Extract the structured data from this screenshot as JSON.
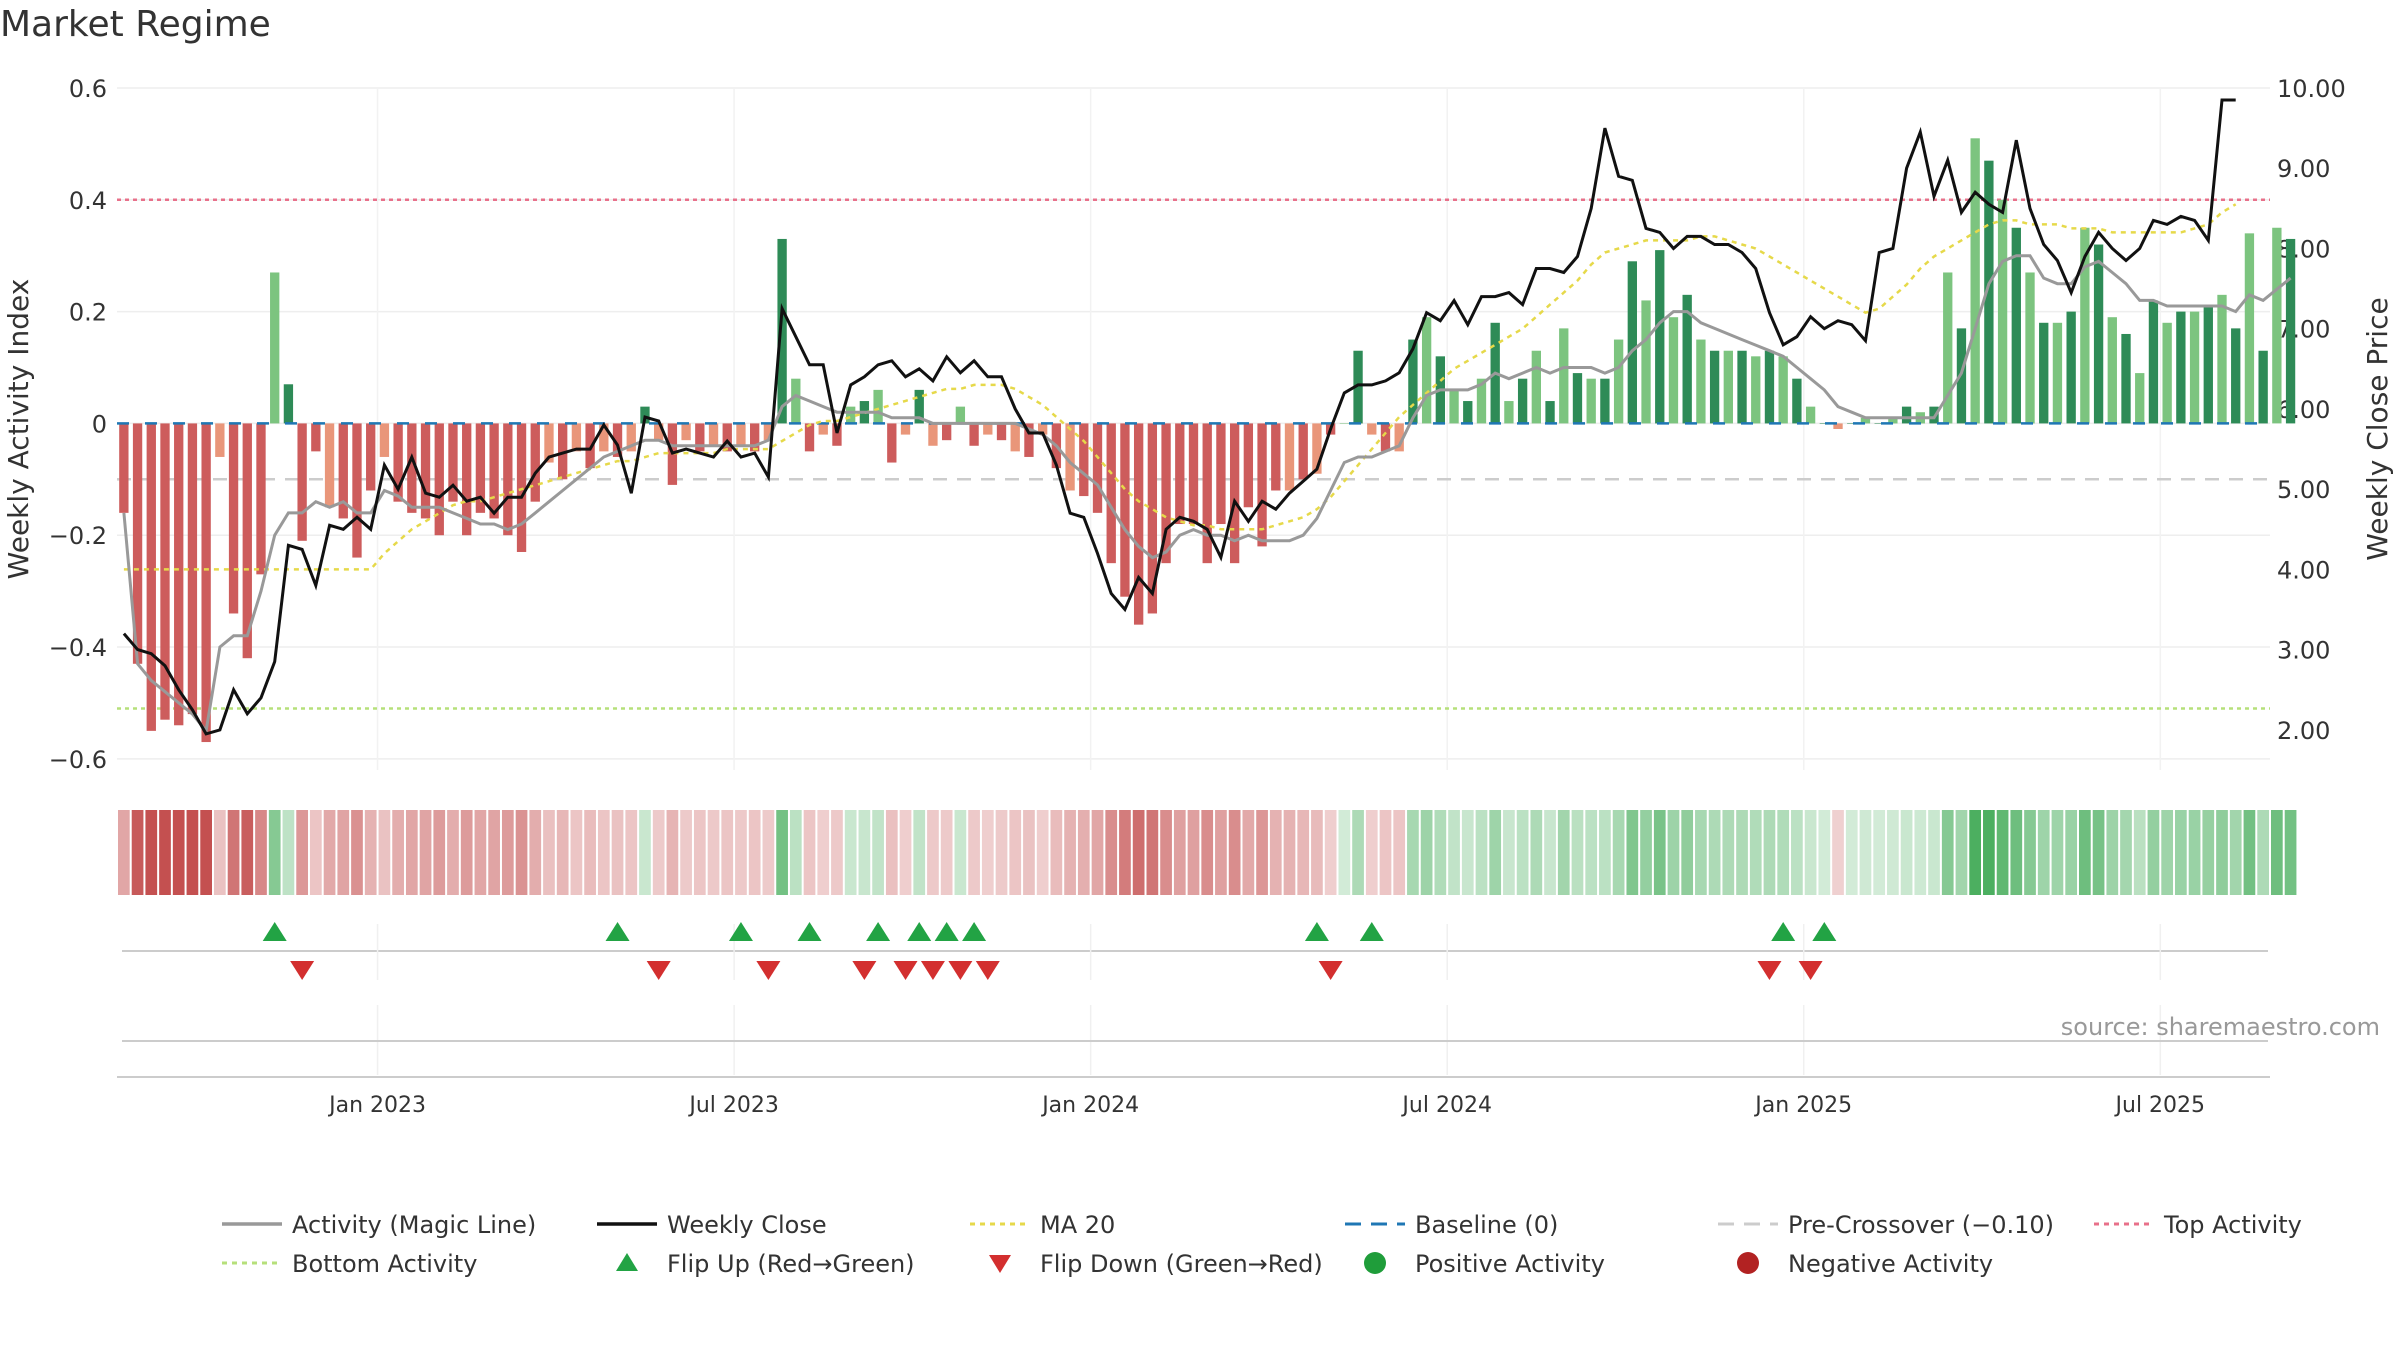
{
  "chart_data": {
    "type": "bar",
    "title": "Market Regime",
    "source": "source: sharemaestro.com",
    "ylabel_left": "Weekly Activity Index",
    "ylabel_right": "Weekly Close Price",
    "xlabel": "",
    "ylim_left": [
      -0.62,
      0.6
    ],
    "ylim_right": [
      1.5,
      10.0
    ],
    "yticks_left": [
      "0.6",
      "0.4",
      "0.2",
      "0",
      "−0.2",
      "−0.4",
      "−0.6"
    ],
    "yticks_left_values": [
      0.6,
      0.4,
      0.2,
      0,
      -0.2,
      -0.4,
      -0.6
    ],
    "yticks_right": [
      "10.00",
      "9.00",
      "8.00",
      "7.00",
      "6.00",
      "5.00",
      "4.00",
      "3.00",
      "2.00"
    ],
    "yticks_right_values": [
      10,
      9,
      8,
      7,
      6,
      5,
      4,
      3,
      2
    ],
    "x_ticks": [
      {
        "label": "Jan 2023",
        "week": 19
      },
      {
        "label": "Jul 2023",
        "week": 45
      },
      {
        "label": "Jan 2024",
        "week": 71
      },
      {
        "label": "Jul 2024",
        "week": 97
      },
      {
        "label": "Jan 2025",
        "week": 123
      },
      {
        "label": "Jul 2025",
        "week": 149
      }
    ],
    "x_range_weeks": [
      0,
      157
    ],
    "reference_lines": {
      "top_activity": 0.4,
      "bottom_activity": -0.51,
      "pre_crossover": -0.1,
      "baseline": 0
    },
    "series": [
      {
        "name": "Weekly Activity Index",
        "type": "bar",
        "values": [
          -0.16,
          -0.43,
          -0.55,
          -0.53,
          -0.54,
          -0.52,
          -0.57,
          -0.06,
          -0.34,
          -0.42,
          -0.27,
          0.27,
          0.07,
          -0.21,
          -0.05,
          -0.15,
          -0.17,
          -0.24,
          -0.12,
          -0.06,
          -0.14,
          -0.16,
          -0.17,
          -0.2,
          -0.14,
          -0.2,
          -0.16,
          -0.17,
          -0.2,
          -0.23,
          -0.14,
          -0.07,
          -0.1,
          -0.05,
          -0.08,
          -0.05,
          -0.06,
          -0.05,
          0.03,
          -0.03,
          -0.11,
          -0.03,
          -0.05,
          -0.04,
          -0.05,
          -0.04,
          -0.05,
          -0.03,
          0.33,
          0.08,
          -0.05,
          -0.02,
          -0.04,
          0.03,
          0.04,
          0.06,
          -0.07,
          -0.02,
          0.06,
          -0.04,
          -0.03,
          0.03,
          -0.04,
          -0.02,
          -0.03,
          -0.05,
          -0.06,
          -0.02,
          -0.08,
          -0.12,
          -0.13,
          -0.16,
          -0.25,
          -0.31,
          -0.36,
          -0.34,
          -0.25,
          -0.18,
          -0.18,
          -0.25,
          -0.18,
          -0.25,
          -0.15,
          -0.22,
          -0.12,
          -0.12,
          -0.1,
          -0.09,
          -0.02,
          0.0,
          0.13,
          -0.02,
          -0.05,
          -0.05,
          0.15,
          0.19,
          0.12,
          0.06,
          0.04,
          0.08,
          0.18,
          0.04,
          0.08,
          0.13,
          0.04,
          0.17,
          0.09,
          0.08,
          0.08,
          0.15,
          0.29,
          0.22,
          0.31,
          0.19,
          0.23,
          0.15,
          0.13,
          0.13,
          0.13,
          0.12,
          0.13,
          0.12,
          0.08,
          0.03,
          0.0,
          -0.01,
          0.0,
          0.01,
          0.0,
          0.01,
          0.03,
          0.02,
          0.03,
          0.27,
          0.17,
          0.51,
          0.47,
          0.4,
          0.35,
          0.27,
          0.18,
          0.18,
          0.2,
          0.35,
          0.32,
          0.19,
          0.16,
          0.09,
          0.22,
          0.18,
          0.2,
          0.2,
          0.21,
          0.23,
          0.17,
          0.34,
          0.13,
          0.35,
          0.33
        ]
      },
      {
        "name": "Activity (Magic Line)",
        "type": "line",
        "color": "#999999",
        "values": [
          -0.16,
          -0.43,
          -0.46,
          -0.48,
          -0.5,
          -0.52,
          -0.55,
          -0.4,
          -0.38,
          -0.38,
          -0.3,
          -0.2,
          -0.16,
          -0.16,
          -0.14,
          -0.15,
          -0.14,
          -0.16,
          -0.16,
          -0.12,
          -0.13,
          -0.15,
          -0.15,
          -0.15,
          -0.16,
          -0.17,
          -0.18,
          -0.18,
          -0.19,
          -0.18,
          -0.16,
          -0.14,
          -0.12,
          -0.1,
          -0.08,
          -0.06,
          -0.05,
          -0.04,
          -0.03,
          -0.03,
          -0.04,
          -0.04,
          -0.04,
          -0.04,
          -0.04,
          -0.04,
          -0.04,
          -0.03,
          0.03,
          0.05,
          0.04,
          0.03,
          0.02,
          0.02,
          0.02,
          0.02,
          0.01,
          0.01,
          0.01,
          0.0,
          0.0,
          0.0,
          0.0,
          0.0,
          0.0,
          0.0,
          -0.01,
          -0.02,
          -0.04,
          -0.07,
          -0.09,
          -0.11,
          -0.15,
          -0.19,
          -0.22,
          -0.24,
          -0.23,
          -0.2,
          -0.19,
          -0.2,
          -0.2,
          -0.21,
          -0.2,
          -0.21,
          -0.21,
          -0.21,
          -0.2,
          -0.17,
          -0.12,
          -0.07,
          -0.06,
          -0.06,
          -0.05,
          -0.04,
          0.01,
          0.05,
          0.06,
          0.06,
          0.06,
          0.07,
          0.09,
          0.08,
          0.09,
          0.1,
          0.09,
          0.1,
          0.1,
          0.1,
          0.09,
          0.1,
          0.13,
          0.15,
          0.18,
          0.2,
          0.2,
          0.18,
          0.17,
          0.16,
          0.15,
          0.14,
          0.13,
          0.12,
          0.1,
          0.08,
          0.06,
          0.03,
          0.02,
          0.01,
          0.01,
          0.01,
          0.01,
          0.01,
          0.01,
          0.05,
          0.09,
          0.17,
          0.25,
          0.29,
          0.3,
          0.3,
          0.26,
          0.25,
          0.25,
          0.28,
          0.29,
          0.27,
          0.25,
          0.22,
          0.22,
          0.21,
          0.21,
          0.21,
          0.21,
          0.21,
          0.2,
          0.23,
          0.22,
          0.24,
          0.26
        ]
      },
      {
        "name": "Weekly Close",
        "type": "line",
        "axis": "right",
        "color": "#111111",
        "values": [
          3.2,
          3.0,
          2.95,
          2.8,
          2.5,
          2.25,
          1.95,
          2.0,
          2.5,
          2.2,
          2.4,
          2.85,
          4.3,
          4.25,
          3.8,
          4.55,
          4.5,
          4.65,
          4.5,
          5.3,
          5.0,
          5.4,
          4.95,
          4.9,
          5.05,
          4.85,
          4.9,
          4.7,
          4.9,
          4.9,
          5.2,
          5.4,
          5.45,
          5.5,
          5.5,
          5.8,
          5.55,
          4.95,
          5.9,
          5.85,
          5.45,
          5.5,
          5.45,
          5.4,
          5.6,
          5.4,
          5.45,
          5.15,
          7.25,
          6.9,
          6.55,
          6.55,
          5.7,
          6.3,
          6.4,
          6.55,
          6.6,
          6.4,
          6.5,
          6.35,
          6.65,
          6.45,
          6.6,
          6.4,
          6.4,
          6.0,
          5.7,
          5.7,
          5.3,
          4.7,
          4.65,
          4.2,
          3.7,
          3.5,
          3.9,
          3.7,
          4.5,
          4.65,
          4.6,
          4.5,
          4.15,
          4.85,
          4.6,
          4.85,
          4.75,
          4.95,
          5.1,
          5.25,
          5.75,
          6.2,
          6.3,
          6.3,
          6.35,
          6.45,
          6.75,
          7.2,
          7.1,
          7.35,
          7.05,
          7.4,
          7.4,
          7.45,
          7.3,
          7.75,
          7.75,
          7.7,
          7.9,
          8.5,
          9.5,
          8.9,
          8.85,
          8.25,
          8.2,
          8.0,
          8.15,
          8.15,
          8.05,
          8.05,
          7.95,
          7.75,
          7.2,
          6.8,
          6.9,
          7.15,
          7.0,
          7.1,
          7.05,
          6.85,
          7.95,
          8.0,
          9.0,
          9.45,
          8.65,
          9.1,
          8.45,
          8.7,
          8.55,
          8.45,
          9.35,
          8.5,
          8.05,
          7.85,
          7.45,
          7.9,
          8.2,
          8.0,
          7.85,
          8.0,
          8.35,
          8.3,
          8.4,
          8.35,
          8.1,
          9.85,
          9.85
        ]
      },
      {
        "name": "MA 20",
        "type": "line",
        "axis": "right",
        "color": "#e6d94a",
        "dashed": true,
        "values": [
          4.0,
          4.0,
          4.0,
          4.0,
          4.0,
          4.0,
          4.0,
          4.0,
          4.0,
          4.0,
          4.0,
          4.0,
          4.0,
          4.0,
          4.0,
          4.0,
          4.0,
          4.0,
          4.0,
          4.2,
          4.35,
          4.5,
          4.6,
          4.7,
          4.8,
          4.85,
          4.85,
          4.9,
          4.95,
          5.0,
          5.05,
          5.1,
          5.15,
          5.2,
          5.25,
          5.3,
          5.35,
          5.35,
          5.4,
          5.45,
          5.45,
          5.45,
          5.45,
          5.45,
          5.5,
          5.5,
          5.5,
          5.5,
          5.6,
          5.7,
          5.8,
          5.85,
          5.85,
          5.9,
          5.95,
          6.0,
          6.05,
          6.1,
          6.15,
          6.2,
          6.25,
          6.25,
          6.3,
          6.3,
          6.3,
          6.25,
          6.15,
          6.05,
          5.9,
          5.75,
          5.6,
          5.4,
          5.2,
          5.0,
          4.85,
          4.75,
          4.65,
          4.6,
          4.55,
          4.55,
          4.5,
          4.5,
          4.5,
          4.5,
          4.55,
          4.6,
          4.65,
          4.75,
          4.9,
          5.1,
          5.3,
          5.5,
          5.7,
          5.9,
          6.05,
          6.2,
          6.35,
          6.5,
          6.6,
          6.7,
          6.8,
          6.9,
          7.0,
          7.15,
          7.3,
          7.45,
          7.6,
          7.8,
          7.95,
          8.0,
          8.05,
          8.1,
          8.1,
          8.1,
          8.1,
          8.15,
          8.15,
          8.1,
          8.05,
          8.0,
          7.9,
          7.8,
          7.7,
          7.6,
          7.5,
          7.4,
          7.3,
          7.2,
          7.25,
          7.4,
          7.55,
          7.75,
          7.9,
          8.0,
          8.1,
          8.2,
          8.3,
          8.35,
          8.35,
          8.3,
          8.3,
          8.3,
          8.25,
          8.25,
          8.25,
          8.2,
          8.2,
          8.2,
          8.2,
          8.2,
          8.2,
          8.25,
          8.3,
          8.45,
          8.55
        ]
      }
    ],
    "flip_up_weeks": [
      11,
      36,
      45,
      50,
      55,
      58,
      60,
      62,
      87,
      91,
      121,
      124
    ],
    "flip_down_weeks": [
      13,
      39,
      47,
      54,
      57,
      59,
      61,
      63,
      88,
      120,
      123
    ],
    "colors": {
      "pos_dark": "#2e8b57",
      "pos_light": "#7cc47f",
      "neg_dark": "#cd5c5c",
      "neg_light": "#e9967a",
      "magic": "#999999",
      "close": "#111111",
      "ma": "#e6d94a",
      "baseline": "#1f77b4",
      "pre_crossover": "#cccccc",
      "top": "#e8708a",
      "bottom": "#b6e07a",
      "flip_up": "#22a344",
      "flip_down": "#d32f2f",
      "positive_marker": "#1f9d3a",
      "negative_marker": "#b22222"
    },
    "legend": [
      {
        "label": "Activity (Magic Line)",
        "kind": "line",
        "color": "#999999"
      },
      {
        "label": "Weekly Close",
        "kind": "line",
        "color": "#111111"
      },
      {
        "label": "MA 20",
        "kind": "dotted",
        "color": "#e6d94a"
      },
      {
        "label": "Baseline (0)",
        "kind": "dash",
        "color": "#1f77b4"
      },
      {
        "label": "Pre-Crossover (−0.10)",
        "kind": "dash",
        "color": "#cccccc"
      },
      {
        "label": "Top Activity",
        "kind": "dotted",
        "color": "#e8708a"
      },
      {
        "label": "Bottom Activity",
        "kind": "dotted",
        "color": "#b6e07a"
      },
      {
        "label": "Flip Up (Red→Green)",
        "kind": "tri-up",
        "color": "#22a344"
      },
      {
        "label": "Flip Down (Green→Red)",
        "kind": "tri-down",
        "color": "#d32f2f"
      },
      {
        "label": "Positive Activity",
        "kind": "dot",
        "color": "#1f9d3a"
      },
      {
        "label": "Negative Activity",
        "kind": "dot",
        "color": "#b22222"
      }
    ]
  }
}
